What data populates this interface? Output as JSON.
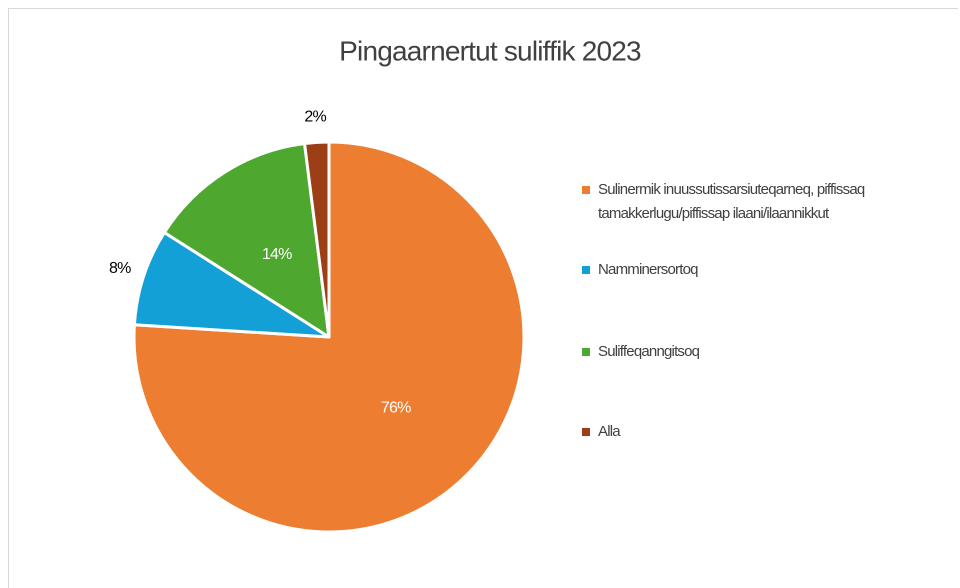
{
  "chart_data": {
    "type": "pie",
    "title": "Pingaarnertut suliffik 2023",
    "categories": [
      "Sulinermik inuussutissarsiuteqarneq, piffissaq tamakkerlugu/piffissap ilaani/ilaannikkut",
      "Namminersortoq",
      "Suliffeqanngitsoq",
      "Alla"
    ],
    "values": [
      76,
      8,
      14,
      2
    ],
    "value_labels": [
      "76%",
      "8%",
      "14%",
      "2%"
    ],
    "colors": [
      "#ed7d31",
      "#12a0d7",
      "#4ea72e",
      "#9c3f17"
    ],
    "legend": "right"
  }
}
